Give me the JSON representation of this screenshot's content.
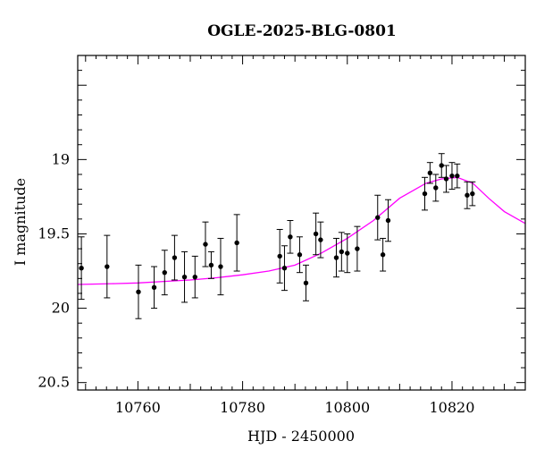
{
  "chart_data": {
    "type": "scatter",
    "title": "OGLE-2025-BLG-0801",
    "xlabel": "HJD - 2450000",
    "ylabel": "I magnitude",
    "xlim": [
      10748.5,
      10834
    ],
    "ylim": [
      20.55,
      18.3
    ],
    "y_inverted": true,
    "grid": false,
    "x_ticks": [
      10760,
      10780,
      10800,
      10820
    ],
    "x_tick_labels": [
      "10760",
      "10780",
      "10800",
      "10820"
    ],
    "y_ticks": [
      19.0,
      19.5,
      20.0,
      20.5
    ],
    "y_tick_labels": [
      "19",
      "19.5",
      "20",
      "20.5"
    ],
    "series": [
      {
        "kind": "points_with_errorbars",
        "color": "#000000",
        "points": [
          {
            "x": 10749.2,
            "y": 19.73,
            "err": 0.21
          },
          {
            "x": 10754.1,
            "y": 19.72,
            "err": 0.21
          },
          {
            "x": 10760.1,
            "y": 19.89,
            "err": 0.18
          },
          {
            "x": 10763.1,
            "y": 19.86,
            "err": 0.14
          },
          {
            "x": 10765.1,
            "y": 19.76,
            "err": 0.15
          },
          {
            "x": 10767.0,
            "y": 19.66,
            "err": 0.15
          },
          {
            "x": 10768.9,
            "y": 19.79,
            "err": 0.17
          },
          {
            "x": 10770.9,
            "y": 19.79,
            "err": 0.14
          },
          {
            "x": 10772.9,
            "y": 19.57,
            "err": 0.15
          },
          {
            "x": 10774.0,
            "y": 19.71,
            "err": 0.09
          },
          {
            "x": 10775.8,
            "y": 19.72,
            "err": 0.19
          },
          {
            "x": 10778.9,
            "y": 19.56,
            "err": 0.19
          },
          {
            "x": 10787.1,
            "y": 19.65,
            "err": 0.18
          },
          {
            "x": 10788.0,
            "y": 19.73,
            "err": 0.15
          },
          {
            "x": 10789.1,
            "y": 19.52,
            "err": 0.11
          },
          {
            "x": 10790.9,
            "y": 19.64,
            "err": 0.12
          },
          {
            "x": 10792.1,
            "y": 19.83,
            "err": 0.12
          },
          {
            "x": 10794.0,
            "y": 19.5,
            "err": 0.14
          },
          {
            "x": 10794.9,
            "y": 19.54,
            "err": 0.12
          },
          {
            "x": 10797.9,
            "y": 19.66,
            "err": 0.13
          },
          {
            "x": 10798.9,
            "y": 19.62,
            "err": 0.13
          },
          {
            "x": 10800.0,
            "y": 19.63,
            "err": 0.13
          },
          {
            "x": 10801.9,
            "y": 19.6,
            "err": 0.15
          },
          {
            "x": 10805.8,
            "y": 19.39,
            "err": 0.15
          },
          {
            "x": 10806.8,
            "y": 19.64,
            "err": 0.11
          },
          {
            "x": 10807.8,
            "y": 19.41,
            "err": 0.14
          },
          {
            "x": 10814.8,
            "y": 19.23,
            "err": 0.11
          },
          {
            "x": 10815.8,
            "y": 19.09,
            "err": 0.07
          },
          {
            "x": 10816.9,
            "y": 19.19,
            "err": 0.09
          },
          {
            "x": 10818.0,
            "y": 19.04,
            "err": 0.08
          },
          {
            "x": 10818.9,
            "y": 19.13,
            "err": 0.09
          },
          {
            "x": 10820.0,
            "y": 19.11,
            "err": 0.09
          },
          {
            "x": 10821.0,
            "y": 19.11,
            "err": 0.08
          },
          {
            "x": 10822.9,
            "y": 19.24,
            "err": 0.09
          },
          {
            "x": 10823.9,
            "y": 19.23,
            "err": 0.08
          }
        ]
      },
      {
        "kind": "model_curve",
        "color": "#ff00ff",
        "x": [
          10748.5,
          10755,
          10760,
          10765,
          10770,
          10775,
          10780,
          10785,
          10790,
          10795,
          10800,
          10805,
          10810,
          10815,
          10818,
          10821,
          10824,
          10827,
          10830,
          10834
        ],
        "y": [
          19.84,
          19.835,
          19.83,
          19.82,
          19.81,
          19.795,
          19.775,
          19.75,
          19.71,
          19.63,
          19.53,
          19.41,
          19.26,
          19.16,
          19.13,
          19.12,
          19.16,
          19.26,
          19.35,
          19.43
        ]
      }
    ]
  }
}
